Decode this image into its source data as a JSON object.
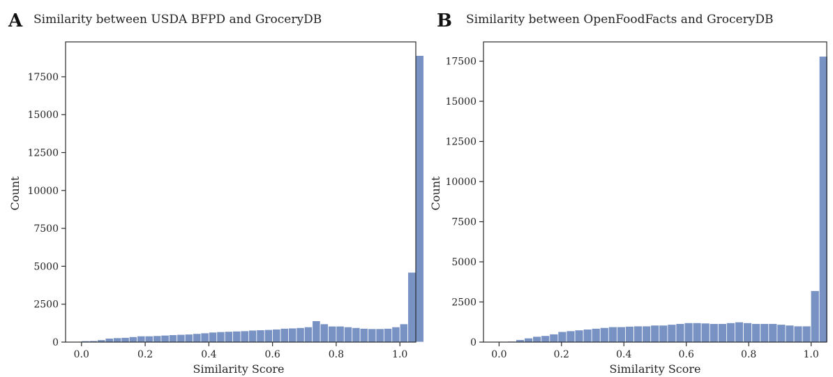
{
  "colors": {
    "bar_fill": "#7892c4"
  },
  "chart_data": [
    {
      "id": "A",
      "type": "bar",
      "panel_letter": "A",
      "title": "Similarity between USDA BFPD and GroceryDB",
      "xlabel": "Similarity Score",
      "ylabel": "Count",
      "xlim": [
        -0.05,
        1.05
      ],
      "ylim": [
        0,
        19800
      ],
      "x_ticks": [
        0.0,
        0.2,
        0.4,
        0.6,
        0.8,
        1.0
      ],
      "x_tick_labels": [
        "0.0",
        "0.2",
        "0.4",
        "0.6",
        "0.8",
        "1.0"
      ],
      "y_ticks": [
        0,
        2500,
        5000,
        7500,
        10000,
        12500,
        15000,
        17500
      ],
      "y_tick_labels": [
        "0",
        "2500",
        "5000",
        "7500",
        "10000",
        "12500",
        "15000",
        "17500"
      ],
      "bin_start": 0.0,
      "bin_width": 0.025,
      "values": [
        80,
        90,
        150,
        250,
        280,
        300,
        350,
        400,
        400,
        420,
        450,
        480,
        500,
        520,
        560,
        600,
        650,
        680,
        700,
        720,
        740,
        780,
        800,
        820,
        850,
        900,
        920,
        950,
        1000,
        1400,
        1200,
        1050,
        1050,
        1000,
        950,
        900,
        880,
        880,
        900,
        1000,
        1200,
        4600,
        18900
      ]
    },
    {
      "id": "B",
      "type": "bar",
      "panel_letter": "B",
      "title": "Similarity between OpenFoodFacts and GroceryDB",
      "xlabel": "Similarity Score",
      "ylabel": "Count",
      "xlim": [
        -0.05,
        1.05
      ],
      "ylim": [
        0,
        18700
      ],
      "x_ticks": [
        0.0,
        0.2,
        0.4,
        0.6,
        0.8,
        1.0
      ],
      "x_tick_labels": [
        "0.0",
        "0.2",
        "0.4",
        "0.6",
        "0.8",
        "1.0"
      ],
      "y_ticks": [
        0,
        2500,
        5000,
        7500,
        10000,
        12500,
        15000,
        17500
      ],
      "y_tick_labels": [
        "0",
        "2500",
        "5000",
        "7500",
        "10000",
        "12500",
        "15000",
        "17500"
      ],
      "bin_start": 0.0,
      "bin_width": 0.027,
      "values": [
        20,
        50,
        150,
        250,
        350,
        400,
        500,
        650,
        700,
        750,
        800,
        850,
        900,
        950,
        950,
        980,
        1000,
        1000,
        1050,
        1050,
        1100,
        1150,
        1200,
        1200,
        1180,
        1150,
        1150,
        1200,
        1250,
        1200,
        1150,
        1150,
        1150,
        1100,
        1050,
        1000,
        1000,
        3200,
        17800
      ]
    }
  ]
}
